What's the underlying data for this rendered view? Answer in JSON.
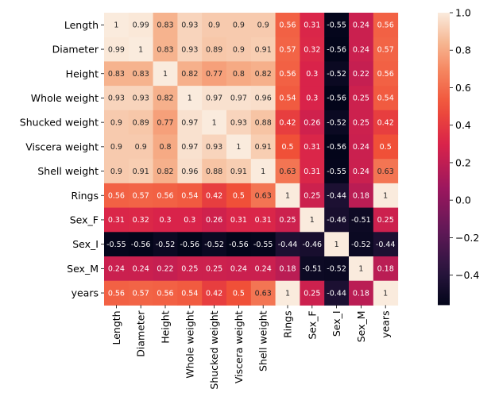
{
  "chart_data": {
    "type": "heatmap",
    "title": "",
    "xlabel": "",
    "ylabel": "",
    "rows": [
      "Length",
      "Diameter",
      "Height",
      "Whole weight",
      "Shucked weight",
      "Viscera weight",
      "Shell weight",
      "Rings",
      "Sex_F",
      "Sex_I",
      "Sex_M",
      "years"
    ],
    "columns": [
      "Length",
      "Diameter",
      "Height",
      "Whole weight",
      "Shucked weight",
      "Viscera weight",
      "Shell weight",
      "Rings",
      "Sex_F",
      "Sex_I",
      "Sex_M",
      "years"
    ],
    "values": [
      [
        1,
        0.99,
        0.83,
        0.93,
        0.9,
        0.9,
        0.9,
        0.56,
        0.31,
        -0.55,
        0.24,
        0.56
      ],
      [
        0.99,
        1,
        0.83,
        0.93,
        0.89,
        0.9,
        0.91,
        0.57,
        0.32,
        -0.56,
        0.24,
        0.57
      ],
      [
        0.83,
        0.83,
        1,
        0.82,
        0.77,
        0.8,
        0.82,
        0.56,
        0.3,
        -0.52,
        0.22,
        0.56
      ],
      [
        0.93,
        0.93,
        0.82,
        1,
        0.97,
        0.97,
        0.96,
        0.54,
        0.3,
        -0.56,
        0.25,
        0.54
      ],
      [
        0.9,
        0.89,
        0.77,
        0.97,
        1,
        0.93,
        0.88,
        0.42,
        0.26,
        -0.52,
        0.25,
        0.42
      ],
      [
        0.9,
        0.9,
        0.8,
        0.97,
        0.93,
        1,
        0.91,
        0.5,
        0.31,
        -0.56,
        0.24,
        0.5
      ],
      [
        0.9,
        0.91,
        0.82,
        0.96,
        0.88,
        0.91,
        1,
        0.63,
        0.31,
        -0.55,
        0.24,
        0.63
      ],
      [
        0.56,
        0.57,
        0.56,
        0.54,
        0.42,
        0.5,
        0.63,
        1,
        0.25,
        -0.44,
        0.18,
        1
      ],
      [
        0.31,
        0.32,
        0.3,
        0.3,
        0.26,
        0.31,
        0.31,
        0.25,
        1,
        -0.46,
        -0.51,
        0.25
      ],
      [
        -0.55,
        -0.56,
        -0.52,
        -0.56,
        -0.52,
        -0.56,
        -0.55,
        -0.44,
        -0.46,
        1,
        -0.52,
        -0.44
      ],
      [
        0.24,
        0.24,
        0.22,
        0.25,
        0.25,
        0.24,
        0.24,
        0.18,
        -0.51,
        -0.52,
        1,
        0.18
      ],
      [
        0.56,
        0.57,
        0.56,
        0.54,
        0.42,
        0.5,
        0.63,
        1,
        0.25,
        -0.44,
        0.18,
        1
      ]
    ],
    "annotated": true,
    "colormap": "rocket",
    "vmin": -0.56,
    "vmax": 1,
    "colorbar": {
      "ticks": [
        1.0,
        0.8,
        0.6,
        0.4,
        0.2,
        0.0,
        -0.2,
        -0.4
      ],
      "tick_labels": [
        "1.0",
        "0.8",
        "0.6",
        "0.4",
        "0.2",
        "0.0",
        "−0.2",
        "−0.4"
      ]
    }
  }
}
